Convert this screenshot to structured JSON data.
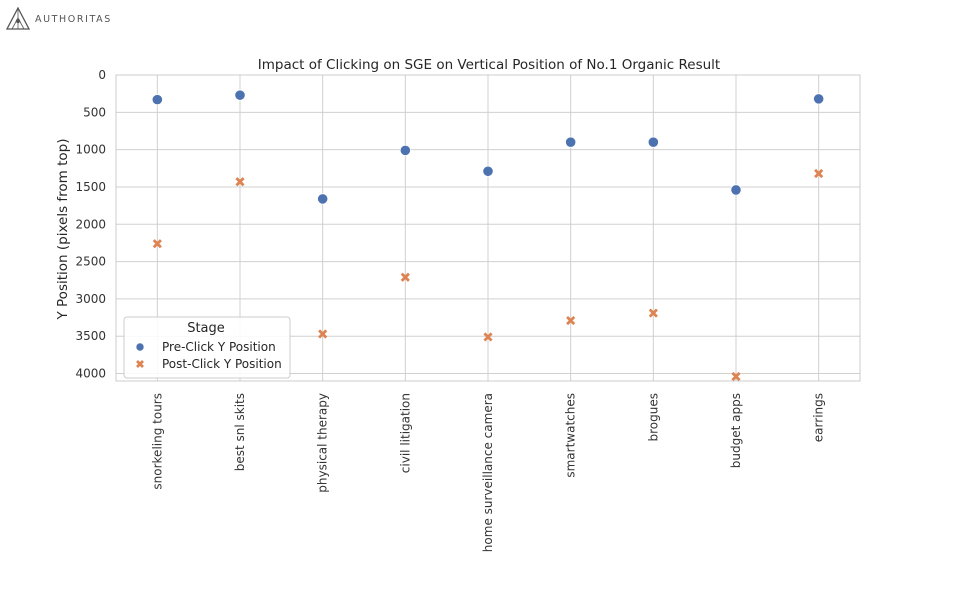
{
  "logo": {
    "text": "AUTHORITAS",
    "icon": "authoritas-logo-icon"
  },
  "colors": {
    "pre": "#4c72b0",
    "post": "#dd8452",
    "grid": "#d0d0d0",
    "frame": "#cccccc"
  },
  "chart_data": {
    "type": "scatter",
    "title": "Impact of Clicking on SGE on Vertical Position of No.1 Organic Result",
    "xlabel": "",
    "ylabel": "Y Position (pixels from top)",
    "y_inverted": true,
    "ylim": [
      0,
      4100
    ],
    "yticks": [
      0,
      500,
      1000,
      1500,
      2000,
      2500,
      3000,
      3500,
      4000
    ],
    "grid": true,
    "categories": [
      "snorkeling tours",
      "best snl skits",
      "physical therapy",
      "civil litigation",
      "home surveillance camera",
      "smartwatches",
      "brogues",
      "budget apps",
      "earrings"
    ],
    "series": [
      {
        "name": "Pre-Click Y Position",
        "marker": "circle",
        "values": [
          330,
          270,
          1660,
          1010,
          1290,
          900,
          900,
          1540,
          320
        ]
      },
      {
        "name": "Post-Click Y Position",
        "marker": "x",
        "values": [
          2260,
          1430,
          3470,
          2710,
          3510,
          3290,
          3190,
          4040,
          1320
        ]
      }
    ],
    "legend": {
      "title": "Stage",
      "placement": "lower-left"
    }
  }
}
